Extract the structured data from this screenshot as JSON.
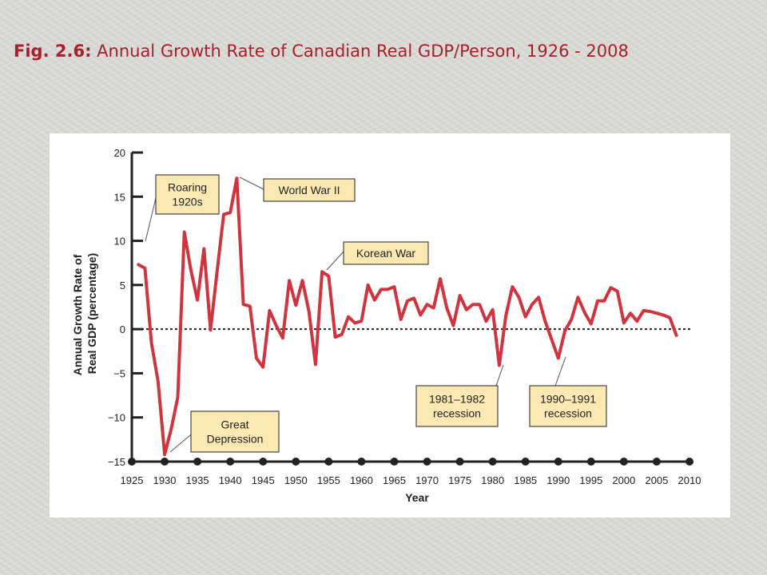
{
  "slide": {
    "fig_label": "Fig. 2.6:",
    "title": " Annual Growth Rate of Canadian Real GDP/Person, 1926 - 2008"
  },
  "colors": {
    "title": "#a8202a",
    "series_line": "#d0343f",
    "annotation_fill": "#fbe8b2",
    "zero_line": "#222222"
  },
  "chart_data": {
    "type": "line",
    "title": "Fig. 2.6: Annual Growth Rate of Canadian Real GDP/Person, 1926 - 2008",
    "xlabel": "Year",
    "ylabel_lines": [
      "Annual Growth Rate of",
      "Real GDP (percentage)"
    ],
    "xlim": [
      1925,
      2010
    ],
    "ylim": [
      -15,
      20
    ],
    "x_ticks": [
      1925,
      1930,
      1935,
      1940,
      1945,
      1950,
      1955,
      1960,
      1965,
      1970,
      1975,
      1980,
      1985,
      1990,
      1995,
      2000,
      2005,
      2010
    ],
    "x_tick_labels": [
      "1925",
      "1930",
      "1935",
      "1940",
      "1945",
      "1950",
      "1955",
      "1960",
      "1965",
      "1970",
      "1975",
      "1980",
      "1985",
      "1990",
      "1995",
      "2000",
      "2005",
      "2010"
    ],
    "y_ticks": [
      -15,
      -10,
      -5,
      0,
      5,
      10,
      15,
      20
    ],
    "y_tick_labels": [
      "−15",
      "−10",
      "−5",
      "0",
      "5",
      "10",
      "15",
      "20"
    ],
    "zero_line": true,
    "grid": false,
    "series": [
      {
        "x": [
          1926,
          1927,
          1928,
          1929,
          1930,
          1931,
          1932,
          1933,
          1934,
          1935,
          1936,
          1937,
          1938,
          1939,
          1940,
          1941,
          1942,
          1943,
          1944,
          1945,
          1946,
          1947,
          1948,
          1949,
          1950,
          1951,
          1952,
          1953,
          1954,
          1955,
          1956,
          1957,
          1958,
          1959,
          1960,
          1961,
          1962,
          1963,
          1964,
          1965,
          1966,
          1967,
          1968,
          1969,
          1970,
          1971,
          1972,
          1973,
          1974,
          1975,
          1976,
          1977,
          1978,
          1979,
          1980,
          1981,
          1982,
          1983,
          1984,
          1985,
          1986,
          1987,
          1988,
          1989,
          1990,
          1991,
          1992,
          1993,
          1994,
          1995,
          1996,
          1997,
          1998,
          1999,
          2000,
          2001,
          2002,
          2003,
          2004,
          2005,
          2006,
          2007,
          2008
        ],
        "y": [
          7.3,
          6.9,
          -1.6,
          -5.9,
          -14.2,
          -11.3,
          -7.7,
          11.0,
          6.7,
          3.3,
          9.1,
          -0.1,
          6.6,
          13.0,
          13.2,
          17.1,
          2.8,
          2.6,
          -3.3,
          -4.3,
          2.1,
          0.4,
          -1.0,
          5.5,
          2.7,
          5.5,
          2.0,
          -4.0,
          6.5,
          6.0,
          -0.9,
          -0.6,
          1.4,
          0.7,
          0.9,
          5.0,
          3.3,
          4.5,
          4.5,
          4.8,
          1.1,
          3.2,
          3.5,
          1.6,
          2.8,
          2.4,
          5.7,
          2.4,
          0.4,
          3.8,
          2.2,
          2.8,
          2.8,
          0.9,
          2.2,
          -4.1,
          1.5,
          4.8,
          3.6,
          1.4,
          2.8,
          3.6,
          0.9,
          -1.2,
          -3.3,
          -0.2,
          1.1,
          3.6,
          1.9,
          0.6,
          3.2,
          3.2,
          4.7,
          4.3,
          0.7,
          1.8,
          0.9,
          2.1,
          2.0,
          1.8,
          1.6,
          1.3,
          -0.7
        ]
      }
    ],
    "annotations": [
      {
        "lines": [
          "Roaring",
          "1920s"
        ]
      },
      {
        "lines": [
          "World War II"
        ]
      },
      {
        "lines": [
          "Korean War"
        ]
      },
      {
        "lines": [
          "Great",
          "Depression"
        ]
      },
      {
        "lines": [
          "1981–1982",
          "recession"
        ]
      },
      {
        "lines": [
          "1990–1991",
          "recession"
        ]
      }
    ]
  }
}
